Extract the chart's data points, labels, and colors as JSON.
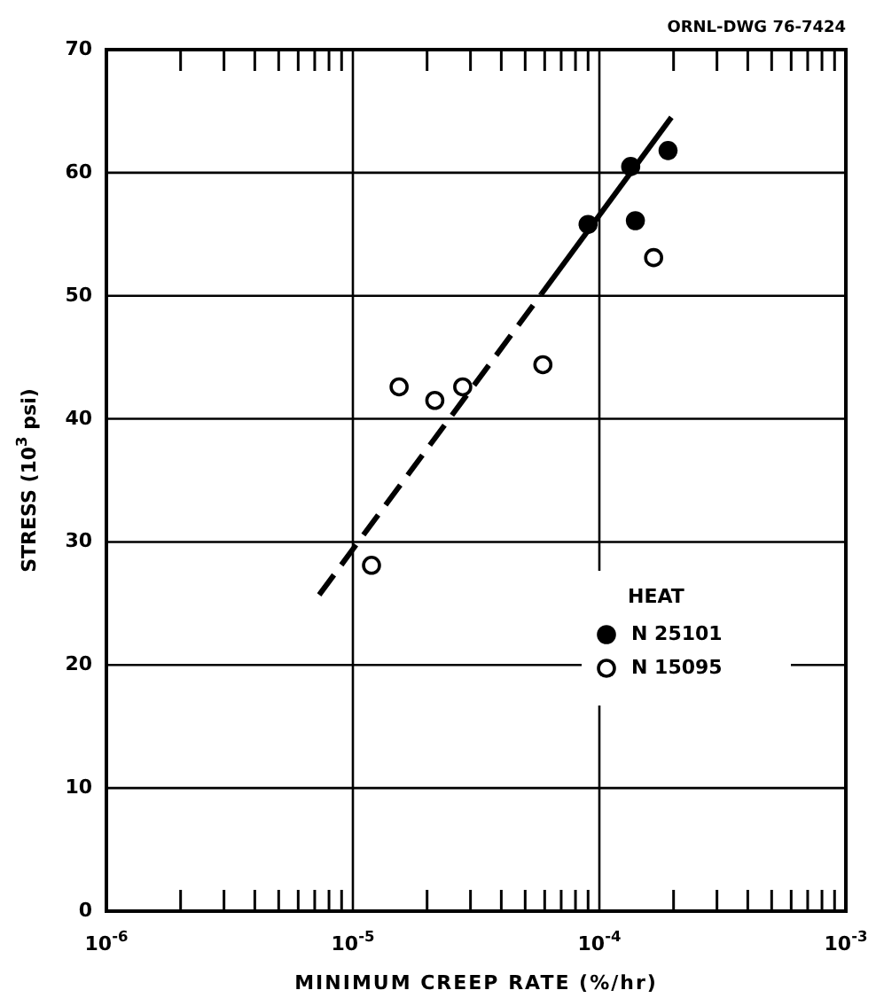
{
  "chart_data": {
    "type": "scatter",
    "xlabel": "MINIMUM CREEP RATE (%/hr)",
    "ylabel": "STRESS (10$^{3}$ psi)",
    "legend_title": "HEAT",
    "annotations": [
      "ORNL-DWG 76-7424"
    ],
    "log": "x",
    "xlim": [
      1e-06,
      0.001
    ],
    "xticks": [
      {
        "value": 1e-06,
        "label": "10$^{-6}$"
      },
      {
        "value": 2e-06,
        "label": null
      },
      {
        "value": 3e-06,
        "label": null
      },
      {
        "value": 4e-06,
        "label": null
      },
      {
        "value": 5e-06,
        "label": null
      },
      {
        "value": 6e-06,
        "label": null
      },
      {
        "value": 7e-06,
        "label": null
      },
      {
        "value": 8e-06,
        "label": null
      },
      {
        "value": 9e-06,
        "label": null
      },
      {
        "value": 1e-05,
        "label": "10$^{-5}$"
      },
      {
        "value": 2e-05,
        "label": null
      },
      {
        "value": 3e-05,
        "label": null
      },
      {
        "value": 4e-05,
        "label": null
      },
      {
        "value": 5e-05,
        "label": null
      },
      {
        "value": 6e-05,
        "label": null
      },
      {
        "value": 7e-05,
        "label": null
      },
      {
        "value": 8e-05,
        "label": null
      },
      {
        "value": 9e-05,
        "label": null
      },
      {
        "value": 0.0001,
        "label": "10$^{-4}$"
      },
      {
        "value": 0.0002,
        "label": null
      },
      {
        "value": 0.0003,
        "label": null
      },
      {
        "value": 0.0004,
        "label": null
      },
      {
        "value": 0.0005,
        "label": null
      },
      {
        "value": 0.0006,
        "label": null
      },
      {
        "value": 0.0007,
        "label": null
      },
      {
        "value": 0.0008,
        "label": null
      },
      {
        "value": 0.0009,
        "label": null
      },
      {
        "value": 0.001,
        "label": "10$^{-3}$"
      }
    ],
    "ylim": [
      0,
      70
    ],
    "yticks": [
      0,
      10,
      20,
      30,
      40,
      50,
      60,
      70
    ],
    "grid": true,
    "legend": "right",
    "series": [
      {
        "name": "N 25101",
        "color": "#000000",
        "marker": "circle",
        "x": [
          9e-05,
          0.000134,
          0.00014,
          0.00019
        ],
        "values": [
          55.8,
          60.5,
          56.1,
          61.8
        ]
      },
      {
        "name": "N 15095",
        "color": "#ffffff",
        "marker": "circle",
        "x": [
          1.19e-05,
          1.54e-05,
          2.15e-05,
          2.79e-05,
          5.9e-05,
          0.000166
        ],
        "values": [
          28.1,
          42.6,
          41.5,
          42.6,
          44.4,
          53.1
        ]
      },
      {
        "type": "line",
        "color": "#000000",
        "line_style": "dashed",
        "x": [
          7.3e-06,
          5.8e-05
        ],
        "values": [
          25.7,
          50.1
        ]
      },
      {
        "type": "line",
        "color": "#000000",
        "line_style": "solid",
        "x": [
          5.8e-05,
          0.000196
        ],
        "values": [
          50.1,
          64.5
        ]
      }
    ]
  }
}
